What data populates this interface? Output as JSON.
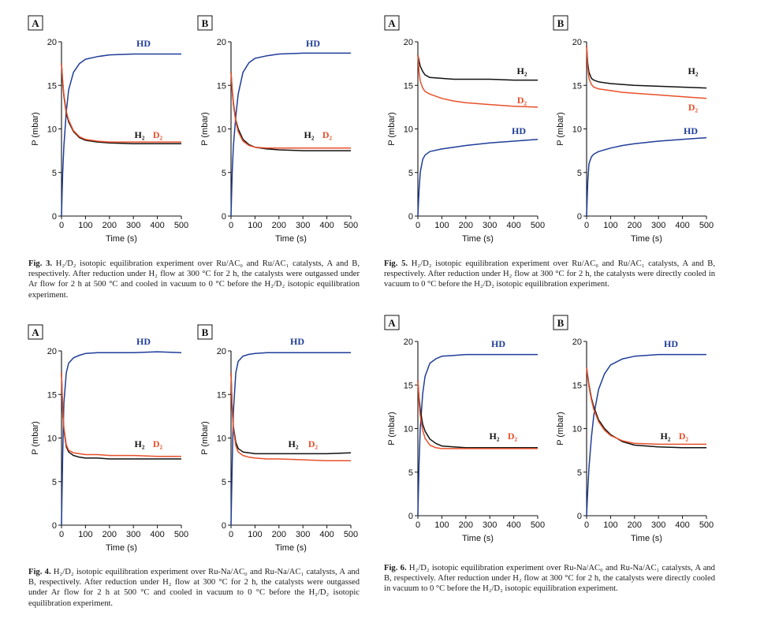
{
  "colors": {
    "HD": "#1f3d99",
    "H2": "#111111",
    "D2": "#e8502a"
  },
  "figures": [
    {
      "id": "fig3",
      "caption": {
        "num": "Fig. 3.",
        "text": "H₂/D₂ isotopic equilibration experiment over Ru/AC₀ and Ru/AC₁ catalysts, A and B, respectively. After reduction under H₂ flow at 300 °C for 2 h, the catalysts were outgassed under Ar flow for 2 h at 500 °C and cooled in vacuum to 0 °C before the H₂/D₂ isotopic equilibration experiment."
      }
    },
    {
      "id": "fig5",
      "caption": {
        "num": "Fig. 5.",
        "text": "H₂/D₂ isotopic equilibration experiment over Ru/AC₀ and Ru/AC₁ catalysts, A and B, respectively. After reduction under H₂ flow at 300 °C for 2 h, the catalysts were directly cooled in vacuum to 0 °C before the H₂/D₂ isotopic equilibration experiment."
      }
    },
    {
      "id": "fig4",
      "caption": {
        "num": "Fig. 4.",
        "text": "H₂/D₂ isotopic equilibration experiment over Ru-Na/AC₀ and Ru-Na/AC₁ catalysts, A and B, respectively. After reduction under H₂ flow at 300 °C for 2 h, the catalysts were outgassed under Ar flow for 2 h at 500 °C and cooled in vacuum to 0 °C before the H₂/D₂ isotopic equilibration experiment."
      }
    },
    {
      "id": "fig6",
      "caption": {
        "num": "Fig. 6.",
        "text": "H₂/D₂ isotopic equilibration experiment over Ru-Na/AC₀ and Ru-Na/AC₁ catalysts, A and B, respectively. After reduction under H₂ flow at 300 °C for 2 h, the catalysts were directly cooled in vacuum to 0 °C before the H₂/D₂ isotopic equilibration experiment."
      }
    }
  ],
  "chart_data": [
    {
      "panel": "A",
      "figure": "Fig. 3",
      "type": "line",
      "xlabel": "Time (s)",
      "ylabel": "P (mbar)",
      "xlim": [
        0,
        500
      ],
      "ylim": [
        0,
        20
      ],
      "xticks": [
        0,
        100,
        200,
        300,
        400,
        500
      ],
      "yticks": [
        0,
        5,
        10,
        15,
        20
      ],
      "labels": [
        "HD",
        "H₂",
        "D₂"
      ],
      "series": [
        {
          "name": "HD",
          "x": [
            0,
            5,
            10,
            20,
            30,
            50,
            75,
            100,
            150,
            200,
            300,
            400,
            500
          ],
          "y": [
            0,
            5,
            8,
            12,
            14.5,
            16.5,
            17.5,
            18,
            18.3,
            18.5,
            18.6,
            18.6,
            18.6
          ]
        },
        {
          "name": "H₂",
          "x": [
            0,
            5,
            10,
            20,
            30,
            50,
            75,
            100,
            150,
            200,
            300,
            400,
            500
          ],
          "y": [
            17.5,
            15.3,
            13.8,
            11.8,
            10.8,
            9.7,
            9.0,
            8.7,
            8.5,
            8.4,
            8.3,
            8.3,
            8.3
          ]
        },
        {
          "name": "D₂",
          "x": [
            0,
            5,
            10,
            20,
            30,
            50,
            75,
            100,
            150,
            200,
            300,
            400,
            500
          ],
          "y": [
            17.5,
            15.5,
            14,
            12,
            11,
            9.8,
            9.1,
            8.8,
            8.6,
            8.5,
            8.5,
            8.5,
            8.5
          ]
        }
      ]
    },
    {
      "panel": "B",
      "figure": "Fig. 3",
      "type": "line",
      "xlabel": "Time (s)",
      "ylabel": "P (mbar)",
      "xlim": [
        0,
        500
      ],
      "ylim": [
        0,
        20
      ],
      "xticks": [
        0,
        100,
        200,
        300,
        400,
        500
      ],
      "yticks": [
        0,
        5,
        10,
        15,
        20
      ],
      "labels": [
        "HD",
        "H₂",
        "D₂"
      ],
      "series": [
        {
          "name": "HD",
          "x": [
            0,
            5,
            10,
            20,
            30,
            50,
            75,
            100,
            150,
            200,
            300,
            400,
            500
          ],
          "y": [
            0,
            5,
            8,
            11.5,
            14,
            16.5,
            17.6,
            18.1,
            18.4,
            18.6,
            18.7,
            18.7,
            18.7
          ]
        },
        {
          "name": "H₂",
          "x": [
            0,
            5,
            10,
            20,
            30,
            50,
            75,
            100,
            150,
            200,
            300,
            400,
            500
          ],
          "y": [
            16.5,
            14.5,
            13,
            11,
            10,
            8.8,
            8.2,
            7.9,
            7.7,
            7.6,
            7.5,
            7.5,
            7.5
          ]
        },
        {
          "name": "D₂",
          "x": [
            0,
            5,
            10,
            20,
            30,
            50,
            75,
            100,
            150,
            200,
            300,
            400,
            500
          ],
          "y": [
            16.5,
            14.3,
            12.8,
            10.8,
            9.7,
            8.6,
            8.1,
            7.9,
            7.8,
            7.8,
            7.8,
            7.8,
            7.8
          ]
        }
      ]
    },
    {
      "panel": "A",
      "figure": "Fig. 5",
      "type": "line",
      "xlabel": "Time (s)",
      "ylabel": "P (mbar)",
      "xlim": [
        0,
        500
      ],
      "ylim": [
        0,
        20
      ],
      "xticks": [
        0,
        100,
        200,
        300,
        400,
        500
      ],
      "yticks": [
        0,
        5,
        10,
        15,
        20
      ],
      "labels": [
        "H₂",
        "D₂",
        "HD"
      ],
      "series": [
        {
          "name": "H₂",
          "x": [
            0,
            5,
            10,
            20,
            30,
            50,
            100,
            150,
            200,
            300,
            400,
            500
          ],
          "y": [
            18.5,
            17.8,
            17.2,
            16.6,
            16.2,
            15.9,
            15.8,
            15.7,
            15.7,
            15.7,
            15.6,
            15.6
          ]
        },
        {
          "name": "D₂",
          "x": [
            0,
            5,
            10,
            20,
            30,
            50,
            100,
            150,
            200,
            300,
            400,
            500
          ],
          "y": [
            18.5,
            16.5,
            15.5,
            14.7,
            14.3,
            14,
            13.5,
            13.2,
            13,
            12.8,
            12.6,
            12.5
          ]
        },
        {
          "name": "HD",
          "x": [
            0,
            5,
            10,
            20,
            30,
            50,
            100,
            150,
            200,
            300,
            400,
            500
          ],
          "y": [
            0,
            3,
            5,
            6.5,
            7,
            7.4,
            7.7,
            7.9,
            8.1,
            8.4,
            8.6,
            8.8
          ]
        }
      ]
    },
    {
      "panel": "B",
      "figure": "Fig. 5",
      "type": "line",
      "xlabel": "Time (s)",
      "ylabel": "P (mbar)",
      "xlim": [
        0,
        500
      ],
      "ylim": [
        0,
        20
      ],
      "xticks": [
        0,
        100,
        200,
        300,
        400,
        500
      ],
      "yticks": [
        0,
        5,
        10,
        15,
        20
      ],
      "labels": [
        "H₂",
        "D₂",
        "HD"
      ],
      "series": [
        {
          "name": "H₂",
          "x": [
            0,
            5,
            10,
            20,
            30,
            50,
            100,
            150,
            200,
            300,
            400,
            500
          ],
          "y": [
            19.5,
            17.5,
            16.5,
            15.8,
            15.6,
            15.4,
            15.2,
            15.1,
            15,
            14.9,
            14.8,
            14.7
          ]
        },
        {
          "name": "D₂",
          "x": [
            0,
            5,
            10,
            20,
            30,
            50,
            100,
            150,
            200,
            300,
            400,
            500
          ],
          "y": [
            19.5,
            17,
            15.8,
            15.1,
            14.8,
            14.6,
            14.4,
            14.2,
            14.1,
            13.9,
            13.7,
            13.5
          ]
        },
        {
          "name": "HD",
          "x": [
            0,
            5,
            10,
            20,
            30,
            50,
            100,
            150,
            200,
            300,
            400,
            500
          ],
          "y": [
            0,
            4,
            6,
            6.8,
            7.1,
            7.4,
            7.8,
            8.1,
            8.3,
            8.6,
            8.8,
            9.0
          ]
        }
      ]
    },
    {
      "panel": "A",
      "figure": "Fig. 4",
      "type": "line",
      "xlabel": "Time (s)",
      "ylabel": "P (mbar)",
      "xlim": [
        0,
        500
      ],
      "ylim": [
        0,
        20
      ],
      "xticks": [
        0,
        100,
        200,
        300,
        400,
        500
      ],
      "yticks": [
        0,
        5,
        10,
        15,
        20
      ],
      "labels": [
        "HD",
        "H₂",
        "D₂"
      ],
      "series": [
        {
          "name": "HD",
          "x": [
            0,
            5,
            10,
            20,
            30,
            50,
            75,
            100,
            150,
            200,
            300,
            400,
            500
          ],
          "y": [
            0,
            8,
            14,
            17.5,
            18.6,
            19.2,
            19.5,
            19.7,
            19.8,
            19.8,
            19.8,
            19.9,
            19.8
          ]
        },
        {
          "name": "H₂",
          "x": [
            0,
            5,
            10,
            20,
            30,
            50,
            75,
            100,
            150,
            200,
            300,
            400,
            500
          ],
          "y": [
            17.5,
            13,
            11,
            9,
            8.4,
            8.0,
            7.8,
            7.7,
            7.7,
            7.6,
            7.6,
            7.6,
            7.6
          ]
        },
        {
          "name": "D₂",
          "x": [
            0,
            5,
            10,
            20,
            30,
            50,
            75,
            100,
            150,
            200,
            300,
            400,
            500
          ],
          "y": [
            17.5,
            13.2,
            11.2,
            9.2,
            8.6,
            8.3,
            8.2,
            8.1,
            8.1,
            8.0,
            8.0,
            7.9,
            7.9
          ]
        }
      ]
    },
    {
      "panel": "B",
      "figure": "Fig. 4",
      "type": "line",
      "xlabel": "Time (s)",
      "ylabel": "P (mbar)",
      "xlim": [
        0,
        500
      ],
      "ylim": [
        0,
        20
      ],
      "xticks": [
        0,
        100,
        200,
        300,
        400,
        500
      ],
      "yticks": [
        0,
        5,
        10,
        15,
        20
      ],
      "labels": [
        "HD",
        "H₂",
        "D₂"
      ],
      "series": [
        {
          "name": "HD",
          "x": [
            0,
            5,
            10,
            20,
            30,
            50,
            75,
            100,
            150,
            200,
            300,
            400,
            500
          ],
          "y": [
            0,
            7,
            13,
            17.5,
            18.8,
            19.4,
            19.6,
            19.7,
            19.8,
            19.8,
            19.8,
            19.8,
            19.8
          ]
        },
        {
          "name": "H₂",
          "x": [
            0,
            5,
            10,
            20,
            30,
            50,
            75,
            100,
            150,
            200,
            300,
            400,
            500
          ],
          "y": [
            17.5,
            13.5,
            11.3,
            9.5,
            8.8,
            8.4,
            8.3,
            8.2,
            8.2,
            8.2,
            8.2,
            8.2,
            8.3
          ]
        },
        {
          "name": "D₂",
          "x": [
            0,
            5,
            10,
            20,
            30,
            50,
            75,
            100,
            150,
            200,
            300,
            400,
            500
          ],
          "y": [
            17.5,
            13.2,
            11,
            9.1,
            8.4,
            8.0,
            7.8,
            7.7,
            7.6,
            7.6,
            7.5,
            7.4,
            7.4
          ]
        }
      ]
    },
    {
      "panel": "A",
      "figure": "Fig. 6",
      "type": "line",
      "xlabel": "Time (s)",
      "ylabel": "P (mbar)",
      "xlim": [
        0,
        500
      ],
      "ylim": [
        0,
        20
      ],
      "xticks": [
        0,
        100,
        200,
        300,
        400,
        500
      ],
      "yticks": [
        0,
        5,
        10,
        15,
        20
      ],
      "labels": [
        "HD",
        "H₂",
        "D₂"
      ],
      "series": [
        {
          "name": "HD",
          "x": [
            0,
            5,
            10,
            20,
            30,
            50,
            75,
            100,
            150,
            200,
            300,
            400,
            500
          ],
          "y": [
            0,
            6,
            10,
            14,
            16,
            17.5,
            18,
            18.3,
            18.4,
            18.5,
            18.5,
            18.5,
            18.5
          ]
        },
        {
          "name": "H₂",
          "x": [
            0,
            5,
            10,
            20,
            30,
            50,
            75,
            100,
            150,
            200,
            300,
            400,
            500
          ],
          "y": [
            15.5,
            13.5,
            12.2,
            10.5,
            9.7,
            8.8,
            8.3,
            8.0,
            7.9,
            7.8,
            7.8,
            7.8,
            7.8
          ]
        },
        {
          "name": "D₂",
          "x": [
            0,
            5,
            10,
            20,
            30,
            50,
            75,
            100,
            150,
            200,
            300,
            400,
            500
          ],
          "y": [
            15.5,
            13,
            11.5,
            9.8,
            8.9,
            8.1,
            7.8,
            7.7,
            7.7,
            7.7,
            7.7,
            7.7,
            7.7
          ]
        }
      ]
    },
    {
      "panel": "B",
      "figure": "Fig. 6",
      "type": "line",
      "xlabel": "Time (s)",
      "ylabel": "P (mbar)",
      "xlim": [
        0,
        500
      ],
      "ylim": [
        0,
        20
      ],
      "xticks": [
        0,
        100,
        200,
        300,
        400,
        500
      ],
      "yticks": [
        0,
        5,
        10,
        15,
        20
      ],
      "labels": [
        "HD",
        "H₂",
        "D₂"
      ],
      "series": [
        {
          "name": "HD",
          "x": [
            0,
            5,
            10,
            20,
            30,
            50,
            75,
            100,
            150,
            200,
            300,
            400,
            500
          ],
          "y": [
            0,
            3,
            5.5,
            9,
            11.5,
            14.5,
            16.3,
            17.3,
            18,
            18.3,
            18.5,
            18.5,
            18.5
          ]
        },
        {
          "name": "H₂",
          "x": [
            0,
            5,
            10,
            20,
            30,
            50,
            75,
            100,
            150,
            200,
            300,
            400,
            500
          ],
          "y": [
            17,
            16,
            15,
            13.5,
            12.5,
            11,
            10,
            9.3,
            8.5,
            8.1,
            7.9,
            7.8,
            7.8
          ]
        },
        {
          "name": "D₂",
          "x": [
            0,
            5,
            10,
            20,
            30,
            50,
            75,
            100,
            150,
            200,
            300,
            400,
            500
          ],
          "y": [
            17,
            15.8,
            14.8,
            13.3,
            12.2,
            10.8,
            9.8,
            9.2,
            8.6,
            8.3,
            8.2,
            8.2,
            8.2
          ]
        }
      ]
    }
  ]
}
